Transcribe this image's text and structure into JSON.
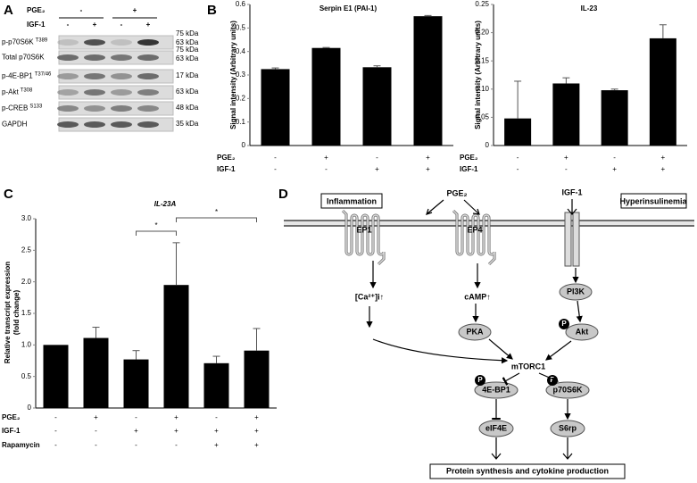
{
  "panel_labels": [
    "A",
    "B",
    "C",
    "D"
  ],
  "blot": {
    "treatments": [
      {
        "name": "PGE₂",
        "values": [
          "-",
          "+"
        ]
      },
      {
        "name": "IGF-1",
        "values": [
          "-",
          "+",
          "-",
          "+"
        ]
      }
    ],
    "rows": [
      {
        "label": "p-p70S6K",
        "sup": "T389"
      },
      {
        "label": "Total p70S6K"
      },
      {
        "label": "p-4E-BP1",
        "sup": "T37/46"
      },
      {
        "label": "p-Akt",
        "sup": "T308"
      },
      {
        "label": "p-CREB",
        "sup": "S133"
      },
      {
        "label": "GAPDH"
      }
    ],
    "markers": [
      "75 kDa",
      "63 kDa",
      "75 kDa",
      "63 kDa",
      "17 kDa",
      "63 kDa",
      "48 kDa",
      "35 kDa"
    ]
  },
  "chart_data": [
    {
      "type": "bar",
      "title": "Serpin E1 (PAI-1)",
      "y_label": "Signal intensity (Arbitrary units)",
      "values": [
        0.325,
        0.415,
        0.333,
        0.55
      ],
      "errors": [
        0.005,
        0.002,
        0.006,
        0.003
      ],
      "color": "#000000",
      "ylim": [
        0,
        0.6
      ],
      "yticks": [
        0,
        0.1,
        0.2,
        0.3,
        0.4,
        0.5,
        0.6
      ],
      "conditions": [
        {
          "name": "PGE₂",
          "values": [
            "-",
            "+",
            "-",
            "+"
          ]
        },
        {
          "name": "IGF-1",
          "values": [
            "-",
            "-",
            "+",
            "+"
          ]
        }
      ]
    },
    {
      "type": "bar",
      "title": "IL-23",
      "y_label": "Signal intensity (Arbitrary units)",
      "values": [
        0.048,
        0.11,
        0.098,
        0.19
      ],
      "errors": [
        0.066,
        0.01,
        0.002,
        0.024
      ],
      "color": "#000000",
      "ylim": [
        0,
        0.25
      ],
      "yticks": [
        0,
        0.05,
        {
          "value": 0.1,
          "label": "0.10"
        },
        0.15,
        {
          "value": 0.2,
          "label": "0.20"
        },
        0.25
      ],
      "conditions": [
        {
          "name": "PGE₂",
          "values": [
            "-",
            "+",
            "-",
            "+"
          ]
        },
        {
          "name": "IGF-1",
          "values": [
            "-",
            "-",
            "+",
            "+"
          ]
        }
      ]
    },
    {
      "type": "bar",
      "title": "IL-23A",
      "title_italic": true,
      "y_label": [
        "Relative transcript expression",
        "(fold change)"
      ],
      "values": [
        1.0,
        1.11,
        0.77,
        1.95,
        0.71,
        0.91
      ],
      "errors": [
        null,
        0.17,
        0.14,
        0.67,
        0.11,
        0.35
      ],
      "color": "#000000",
      "ylim": [
        0,
        3
      ],
      "yticks": [
        0,
        0.5,
        {
          "value": 1,
          "label": "1.0"
        },
        1.5,
        {
          "value": 2,
          "label": "2.0"
        },
        2.5,
        {
          "value": 3,
          "label": "3.0"
        }
      ],
      "annotations": [
        "*",
        "*"
      ],
      "conditions": [
        {
          "name": "PGE₂",
          "values": [
            "-",
            "+",
            "-",
            "+",
            "-",
            "+"
          ]
        },
        {
          "name": "IGF-1",
          "values": [
            "-",
            "-",
            "+",
            "+",
            "+",
            "+"
          ]
        },
        {
          "name": "Rapamycin",
          "values": [
            "-",
            "-",
            "-",
            "-",
            "+",
            "+"
          ]
        }
      ]
    }
  ],
  "diagram": {
    "boxes": [
      "Inflammation",
      "Hyperinsulinemia"
    ],
    "ligands": [
      "PGE₂",
      "IGF-1"
    ],
    "receptors": [
      "EP1",
      "EP4"
    ],
    "messengers": [
      "[Ca²⁺]i↑",
      "cAMP↑"
    ],
    "nodes": [
      "PI3K",
      "PKA",
      "Akt",
      "4E-BP1",
      "p70S6K",
      "eIF4E",
      "S6rp"
    ],
    "hub": "mTORC1",
    "phospho": "P",
    "output": "Protein synthesis and cytokine production"
  }
}
